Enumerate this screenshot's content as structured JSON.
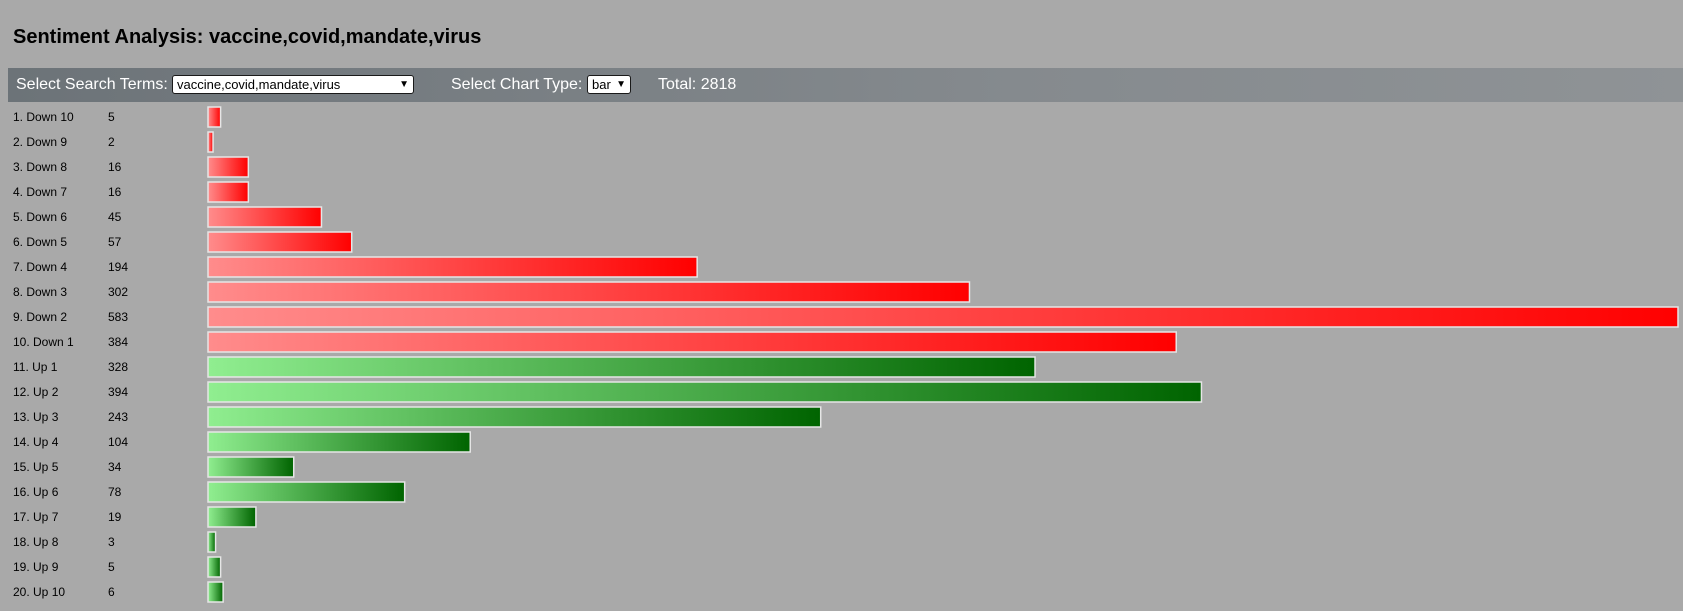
{
  "title": "Sentiment Analysis: vaccine,covid,mandate,virus",
  "toolbar": {
    "search_label": "Select Search Terms:",
    "search_value": "vaccine,covid,mandate,virus",
    "chart_type_label": "Select Chart Type:",
    "chart_type_value": "bar",
    "total_text": "Total: 2818"
  },
  "colors": {
    "negative_start": "#ff8c8c",
    "negative_end": "#ff0000",
    "positive_start": "#90ee90",
    "positive_end": "#006400",
    "bar_border": "#e6e6e6"
  },
  "chart_data": {
    "type": "bar",
    "orientation": "horizontal",
    "categories": [
      "1. Down 10",
      "2. Down 9",
      "3. Down 8",
      "4. Down 7",
      "5. Down 6",
      "6. Down 5",
      "7. Down 4",
      "8. Down 3",
      "9. Down 2",
      "10. Down 1",
      "11. Up 1",
      "12. Up 2",
      "13. Up 3",
      "14. Up 4",
      "15. Up 5",
      "16. Up 6",
      "17. Up 7",
      "18. Up 8",
      "19. Up 9",
      "20. Up 10"
    ],
    "values": [
      5,
      2,
      16,
      16,
      45,
      57,
      194,
      302,
      583,
      384,
      328,
      394,
      243,
      104,
      34,
      78,
      19,
      3,
      5,
      6
    ],
    "sentiment": [
      "negative",
      "negative",
      "negative",
      "negative",
      "negative",
      "negative",
      "negative",
      "negative",
      "negative",
      "negative",
      "positive",
      "positive",
      "positive",
      "positive",
      "positive",
      "positive",
      "positive",
      "positive",
      "positive",
      "positive"
    ],
    "xlim": [
      0,
      583
    ]
  }
}
